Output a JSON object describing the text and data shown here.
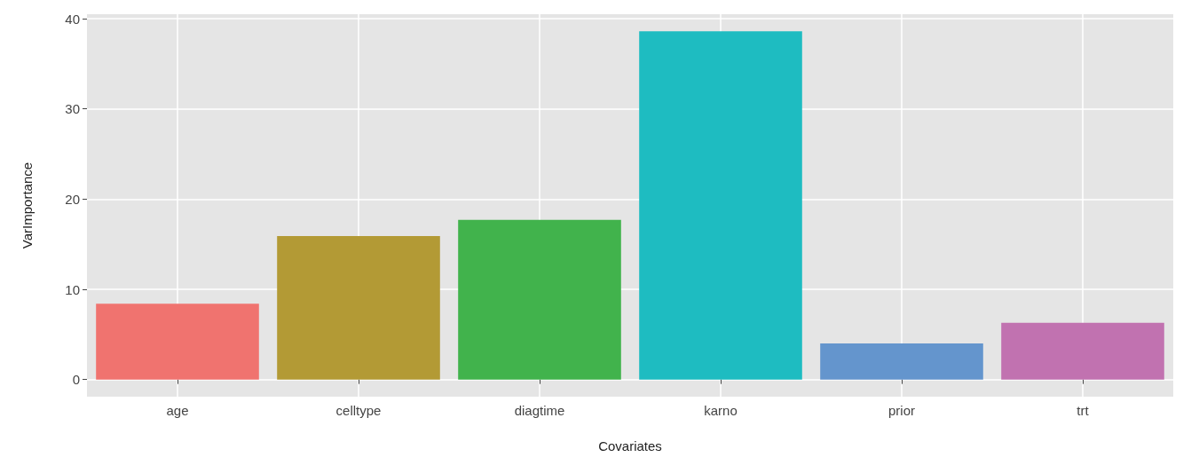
{
  "chart_data": {
    "type": "bar",
    "xlabel": "Covariates",
    "ylabel": "VarImportance",
    "categories": [
      "age",
      "celltype",
      "diagtime",
      "karno",
      "prior",
      "trt"
    ],
    "values": [
      8.4,
      15.9,
      17.7,
      38.6,
      4.0,
      6.3
    ],
    "colors": [
      "#f0736f",
      "#b39a35",
      "#41b34c",
      "#1ebcc1",
      "#6495cd",
      "#c172b0"
    ],
    "ylim": [
      -1.9,
      40.5
    ],
    "yticks": [
      0,
      10,
      20,
      30,
      40
    ],
    "grid": true
  }
}
